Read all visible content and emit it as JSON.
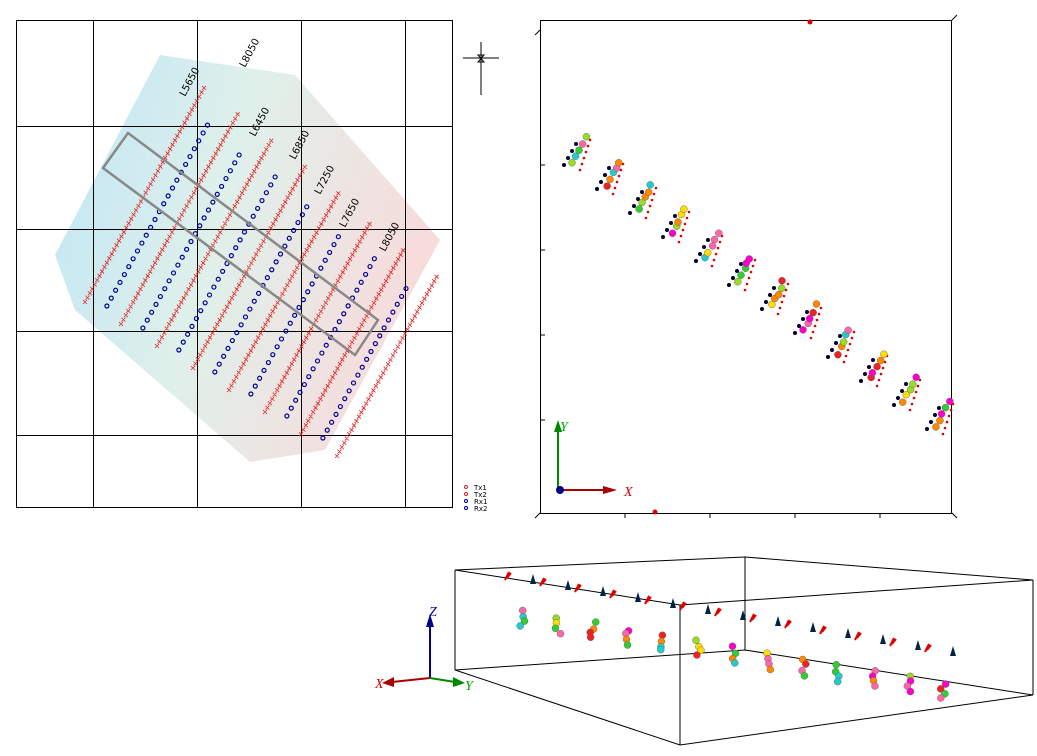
{
  "map": {
    "line_labels": [
      "L5650",
      "L8050",
      "L6450",
      "L6850",
      "L7250",
      "L7650",
      "L8050"
    ],
    "legend": [
      "Tx1",
      "Tx2",
      "Rx1",
      "Rx2"
    ]
  },
  "top_view": {
    "axes": {
      "y": "Y",
      "x": "X"
    }
  },
  "side_view": {
    "axes": {
      "z": "Z",
      "x": "X",
      "y": "Y"
    }
  }
}
